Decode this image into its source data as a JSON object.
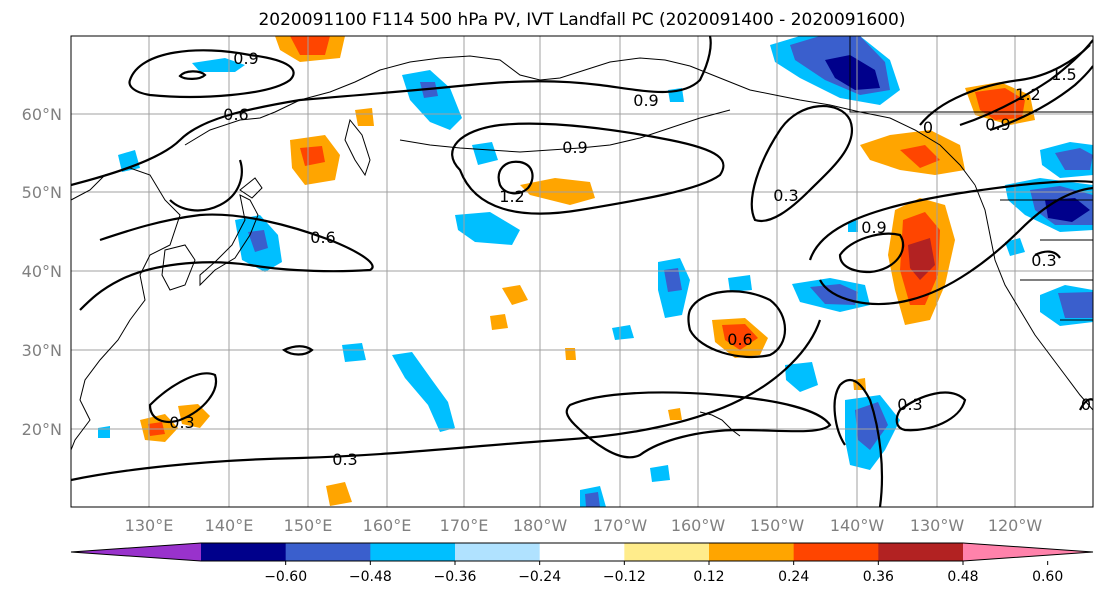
{
  "title": "2020091100 F114 500 hPa PV, IVT Landfall PC (2020091400 - 2020091600)",
  "map": {
    "lat_ticks": [
      "60°N",
      "50°N",
      "40°N",
      "30°N",
      "20°N"
    ],
    "lon_ticks": [
      "130°E",
      "140°E",
      "150°E",
      "160°E",
      "170°E",
      "180°W",
      "170°W",
      "160°W",
      "150°W",
      "140°W",
      "130°W",
      "120°W"
    ],
    "gridlines": true,
    "contour_labels": [
      "0.9",
      "0.6",
      "0.9",
      "0.9",
      "1.2",
      "0.6",
      "0.3",
      "0.9",
      "0.6",
      "0.3",
      "0.3",
      "0.3",
      "0.9",
      "1.2",
      "1.5",
      "0.3",
      "0",
      "0"
    ]
  },
  "colorbar": {
    "tick_labels": [
      "−0.60",
      "−0.48",
      "−0.36",
      "−0.24",
      "−0.12",
      "0.12",
      "0.24",
      "0.36",
      "0.48",
      "0.60"
    ],
    "colors": [
      "#9932cc",
      "#00008b",
      "#3a5fcd",
      "#00bfff",
      "#b0e2ff",
      "#ffffff",
      "#ffec8b",
      "#ffa500",
      "#ff4500",
      "#b22222",
      "#ff82ab"
    ]
  }
}
